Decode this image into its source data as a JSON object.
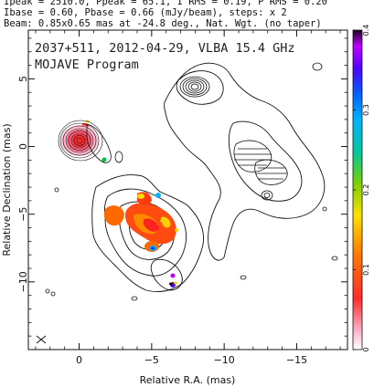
{
  "header": {
    "line1": "Ipeak = 2510.0, Ppeak = 65.1, I RMS = 0.19, P RMS = 0.20",
    "line2": "Ibase = 0.60, Pbase = 0.66 (mJy/beam), steps: x 2",
    "line3": "Beam: 0.85x0.65 mas at -24.8 deg., Nat. Wgt. (no taper)"
  },
  "chart_data": {
    "type": "heatmap",
    "title": "2037+511, 2012-04-29, VLBA 15.4 GHz",
    "subtitle": "MOJAVE Program",
    "xlabel": "Relative R.A. (mas)",
    "ylabel": "Relative Declination (mas)",
    "xlim": [
      3.5,
      -18.5
    ],
    "ylim": [
      -15,
      8.6
    ],
    "xticks": [
      0,
      -5,
      -10,
      -15
    ],
    "xtick_labels": [
      "0",
      "−5",
      "−10",
      "−15"
    ],
    "yticks": [
      5,
      0,
      -5,
      -10
    ],
    "ytick_labels": [
      "5",
      "0",
      "−5",
      "−10"
    ],
    "colorbar": {
      "ticks": [
        0,
        0.1,
        0.2,
        0.3,
        0.4
      ],
      "tick_labels": [
        "0",
        "0.1",
        "0.2",
        "0.3",
        "0.4"
      ],
      "range": [
        0,
        0.4
      ]
    },
    "core_position": [
      0,
      0
    ],
    "beam": {
      "major": 0.85,
      "minor": 0.65,
      "pa_deg": -24.8
    }
  },
  "colors": {
    "contour": "#111111",
    "frame": "#111111",
    "background": "#ffffff"
  }
}
